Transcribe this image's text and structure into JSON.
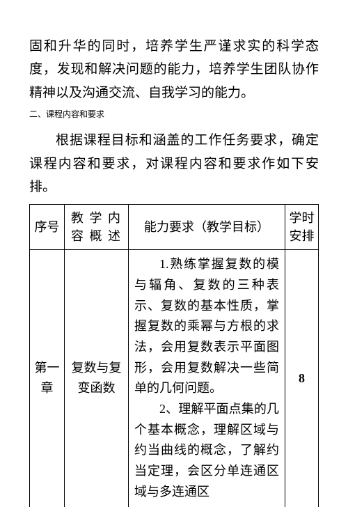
{
  "intro_para": "固和升华的同时，培养学生严谨求实的科学态度，发现和解决问题的能力，培养学生团队协作精神以及沟通交流、自我学习的能力。",
  "section_heading": "二、课程内容和要求",
  "body_para": "根据课程目标和涵盖的工作任务要求，确定课程内容和要求，对课程内容和要求作如下安排。",
  "table": {
    "headers": {
      "col1": "序号",
      "col2_line1": "教 学 内",
      "col2_line2": "容 概 述",
      "col3": "能力要求（教学目标）",
      "col4_line1": "学时",
      "col4_line2": "安排"
    },
    "row1": {
      "chapter_line1": "第一",
      "chapter_line2": "章",
      "content_line1": "复数与复",
      "content_line2": "变函数",
      "requirement_p1": "1.熟练掌握复数的模与辐角、复数的三种表示、复数的基本性质，掌握复数的乘幂与方根的求法，会用复数表示平面图形，会用复数解决一些简单的几何问题。",
      "requirement_p2": "2、理解平面点集的几个基本概念，理解区域与约当曲线的概念，了解约当定理，会区分单连通区域与多连通区",
      "hours": "8"
    }
  }
}
